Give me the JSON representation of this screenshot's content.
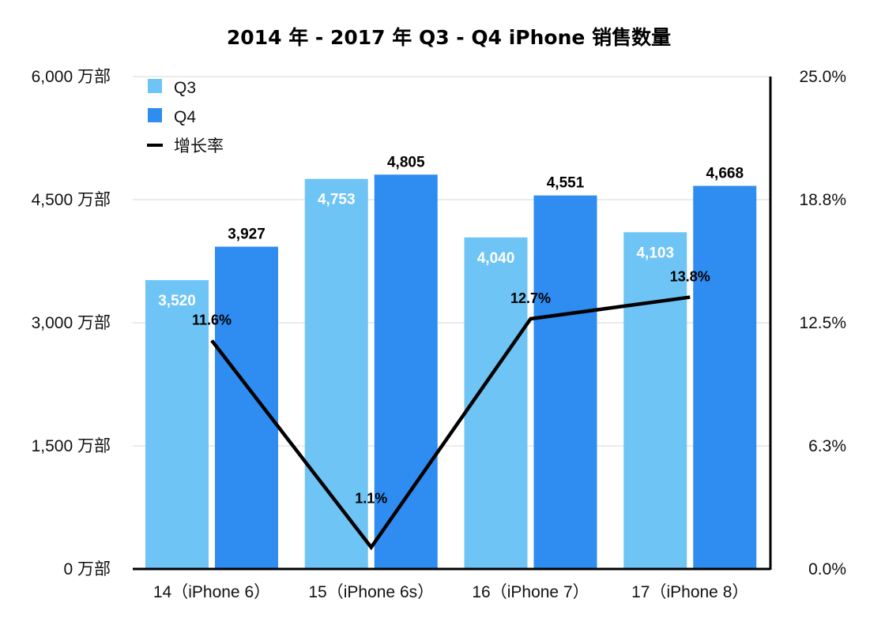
{
  "chart_data": {
    "type": "bar",
    "title": "2014 年 - 2017 年 Q3 - Q4 iPhone 销售数量",
    "categories": [
      "14（iPhone 6）",
      "15（iPhone 6s）",
      "16（iPhone 7）",
      "17（iPhone 8）"
    ],
    "series": [
      {
        "name": "Q3",
        "type": "bar",
        "axis": "left",
        "color": "#6ec4f5",
        "values": [
          3520,
          4753,
          4040,
          4103
        ],
        "labels": [
          "3,520",
          "4,753",
          "4,040",
          "4,103"
        ]
      },
      {
        "name": "Q4",
        "type": "bar",
        "axis": "left",
        "color": "#2f8cf0",
        "values": [
          3927,
          4805,
          4551,
          4668
        ],
        "labels": [
          "3,927",
          "4,805",
          "4,551",
          "4,668"
        ]
      },
      {
        "name": "增长率",
        "type": "line",
        "axis": "right",
        "color": "#000000",
        "values": [
          11.6,
          1.1,
          12.7,
          13.8
        ],
        "labels": [
          "11.6%",
          "1.1%",
          "12.7%",
          "13.8%"
        ]
      }
    ],
    "y_left": {
      "range": [
        0,
        6000
      ],
      "ticks": [
        0,
        1500,
        3000,
        4500,
        6000
      ],
      "tick_labels": [
        "0 万部",
        "1,500 万部",
        "3,000 万部",
        "4,500 万部",
        "6,000 万部"
      ]
    },
    "y_right": {
      "range": [
        0,
        25
      ],
      "ticks": [
        0,
        6.25,
        12.5,
        18.75,
        25
      ],
      "tick_labels": [
        "0.0%",
        "6.3%",
        "12.5%",
        "18.8%",
        "25.0%"
      ]
    },
    "grid": true,
    "legend_position": "top-left"
  }
}
